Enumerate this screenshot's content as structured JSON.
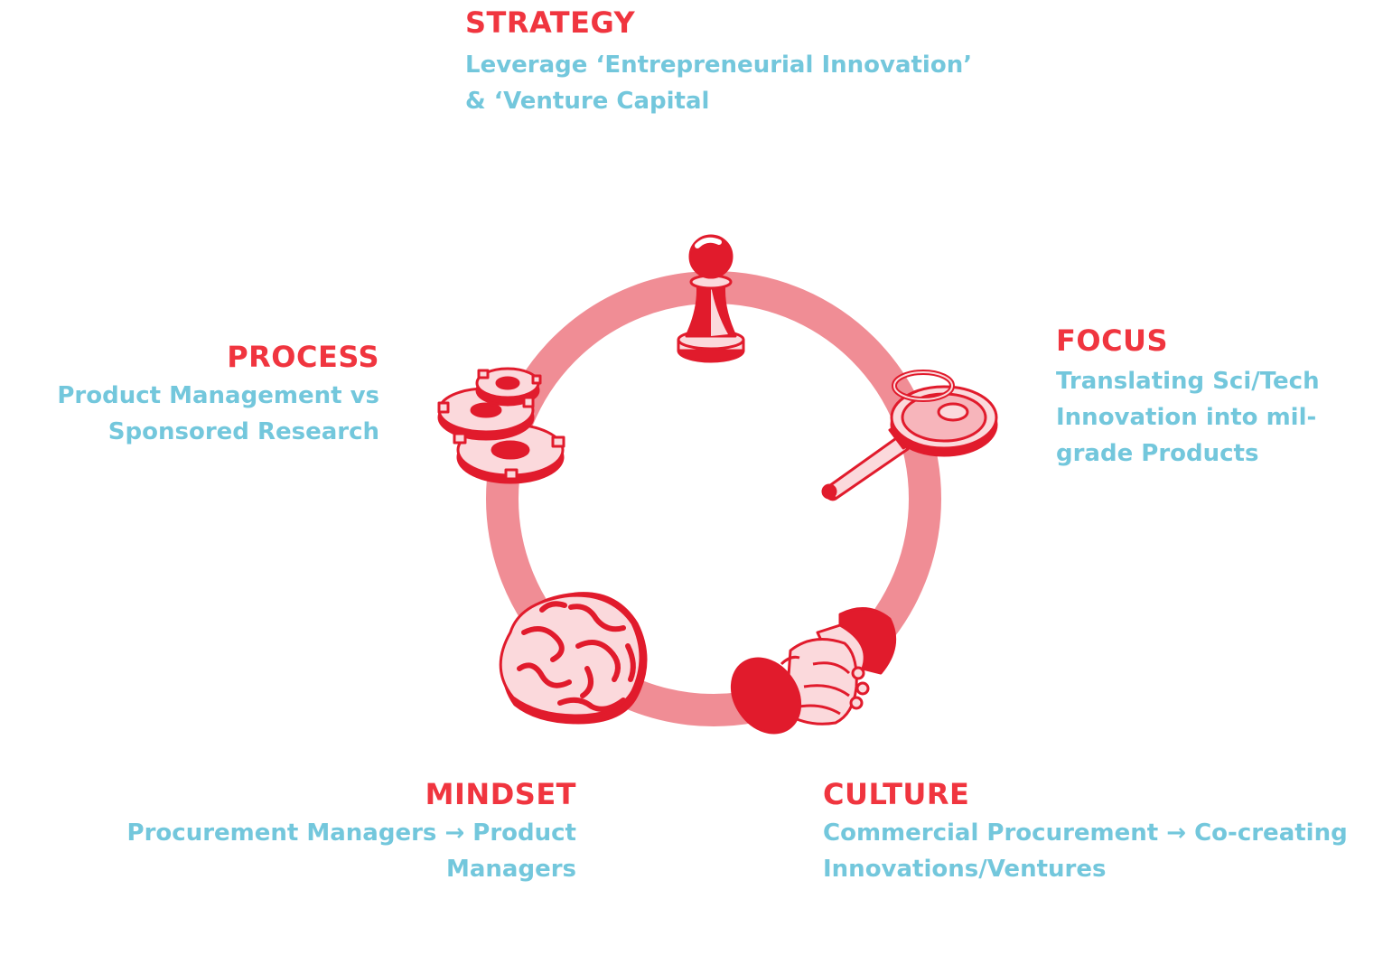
{
  "colors": {
    "heading": "#f0353f",
    "description": "#73c7dc",
    "ring": "#f08d95",
    "icon_stroke": "#e11b2c",
    "icon_fill_light": "#fbd9dc"
  },
  "stages": {
    "strategy": {
      "title": "STRATEGY",
      "line1": "Leverage ‘Entrepreneurial Innovation’",
      "line2": "& ‘Venture Capital",
      "icon": "chess-pawn-icon"
    },
    "focus": {
      "title": "FOCUS",
      "line1": "Translating Sci/Tech",
      "line2": "Innovation into mil-",
      "line3": "grade Products",
      "icon": "magnifying-glass-icon"
    },
    "culture": {
      "title": "CULTURE",
      "line1": "Commercial Procurement → Co-creating",
      "line2": "Innovations/Ventures",
      "icon": "handshake-icon"
    },
    "mindset": {
      "title": "MINDSET",
      "line1": "Procurement Managers → Product",
      "line2": "Managers",
      "icon": "brain-icon"
    },
    "process": {
      "title": "PROCESS",
      "line1": "Product Management vs",
      "line2": "Sponsored Research",
      "icon": "gears-icon"
    }
  }
}
